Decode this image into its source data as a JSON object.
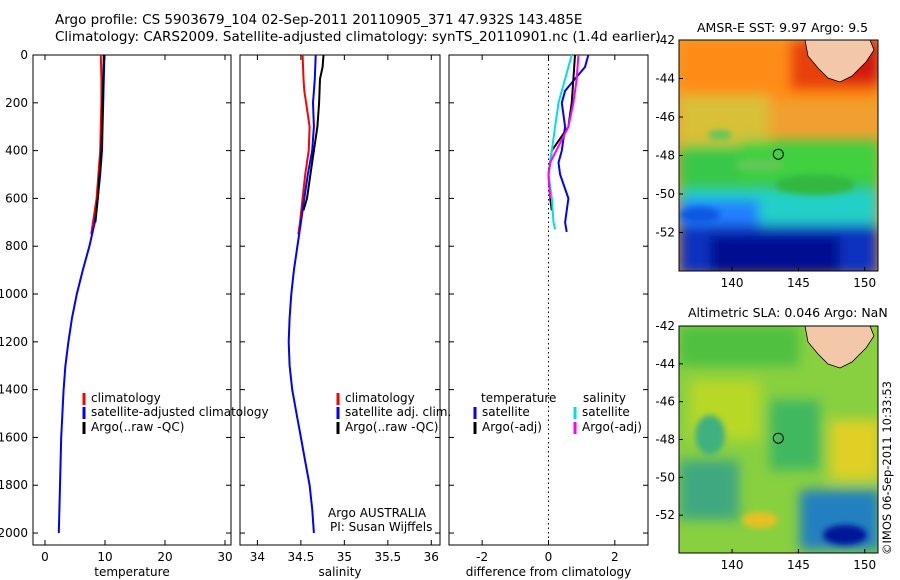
{
  "header": {
    "line1": "Argo profile: CS 5903679_104 02-Sep-2011 20110905_371 47.932S 143.485E",
    "line2": "Climatology: CARS2009. Satellite-adjusted climatology: synTS_20110901.nc (1.4d earlier)"
  },
  "stamp": "©IMOS 06-Sep-2011 10:33:53",
  "colors": {
    "climatology": "#ff0000",
    "satellite": "#0000ff",
    "argo": "#000000",
    "argo_salt": "#ff00ff",
    "satellite_salt": "#00e0e0"
  },
  "chart_data": [
    {
      "type": "line",
      "id": "temperature",
      "xlabel": "temperature",
      "ylabel": "",
      "xlim": [
        -2,
        31
      ],
      "ylim": [
        2050,
        0
      ],
      "xticks": [
        "0",
        "10",
        "20",
        "30"
      ],
      "xtick_values": [
        0,
        10,
        20,
        30
      ],
      "yticks": [
        "0",
        "200",
        "400",
        "600",
        "800",
        "1000",
        "1200",
        "1400",
        "1600",
        "1800",
        "2000"
      ],
      "ytick_values": [
        0,
        200,
        400,
        600,
        800,
        1000,
        1200,
        1400,
        1600,
        1800,
        2000
      ],
      "legend": [
        "climatology",
        "satellite-adjusted climatology",
        "Argo(..raw -QC)"
      ],
      "series": [
        {
          "name": "climatology",
          "color": "#ff0000",
          "points": [
            [
              9.3,
              0
            ],
            [
              9.4,
              100
            ],
            [
              9.4,
              200
            ],
            [
              9.3,
              300
            ],
            [
              9.2,
              400
            ],
            [
              8.9,
              500
            ],
            [
              8.6,
              600
            ],
            [
              8.0,
              700
            ],
            [
              7.7,
              750
            ]
          ]
        },
        {
          "name": "satellite-adjusted climatology",
          "color": "#0000ff",
          "points": [
            [
              9.9,
              0
            ],
            [
              9.8,
              100
            ],
            [
              9.7,
              200
            ],
            [
              9.6,
              300
            ],
            [
              9.5,
              400
            ],
            [
              9.2,
              500
            ],
            [
              8.8,
              600
            ],
            [
              8.3,
              700
            ],
            [
              7.4,
              800
            ],
            [
              6.3,
              900
            ],
            [
              5.3,
              1000
            ],
            [
              4.5,
              1100
            ],
            [
              3.9,
              1200
            ],
            [
              3.4,
              1300
            ],
            [
              3.1,
              1400
            ],
            [
              2.9,
              1500
            ],
            [
              2.7,
              1600
            ],
            [
              2.6,
              1700
            ],
            [
              2.5,
              1800
            ],
            [
              2.4,
              1900
            ],
            [
              2.3,
              2000
            ]
          ]
        },
        {
          "name": "Argo(..raw -QC)",
          "color": "#000000",
          "points": [
            [
              9.8,
              0
            ],
            [
              9.7,
              100
            ],
            [
              9.6,
              200
            ],
            [
              9.5,
              300
            ],
            [
              9.4,
              400
            ],
            [
              9.1,
              500
            ],
            [
              8.8,
              600
            ],
            [
              8.4,
              700
            ]
          ]
        }
      ]
    },
    {
      "type": "line",
      "id": "salinity",
      "xlabel": "salinity",
      "xlim": [
        33.8,
        36.1
      ],
      "ylim": [
        2050,
        0
      ],
      "xticks": [
        "34",
        "34.5",
        "35",
        "35.5",
        "36"
      ],
      "xtick_values": [
        34,
        34.5,
        35,
        35.5,
        36
      ],
      "legend": [
        "climatology",
        "satellite adj. clim.",
        "Argo(..raw -QC)"
      ],
      "annotation": [
        "Argo AUSTRALIA",
        "PI: Susan Wijffels"
      ],
      "series": [
        {
          "name": "climatology",
          "color": "#ff0000",
          "points": [
            [
              34.52,
              0
            ],
            [
              34.53,
              100
            ],
            [
              34.54,
              150
            ],
            [
              34.56,
              200
            ],
            [
              34.6,
              300
            ],
            [
              34.59,
              400
            ],
            [
              34.55,
              500
            ],
            [
              34.52,
              600
            ],
            [
              34.49,
              700
            ],
            [
              34.47,
              750
            ]
          ]
        },
        {
          "name": "satellite adj. clim.",
          "color": "#0000ff",
          "points": [
            [
              34.67,
              0
            ],
            [
              34.66,
              100
            ],
            [
              34.65,
              150
            ],
            [
              34.64,
              200
            ],
            [
              34.65,
              300
            ],
            [
              34.63,
              400
            ],
            [
              34.58,
              500
            ],
            [
              34.54,
              600
            ],
            [
              34.5,
              700
            ],
            [
              34.46,
              800
            ],
            [
              34.42,
              900
            ],
            [
              34.39,
              1000
            ],
            [
              34.37,
              1100
            ],
            [
              34.36,
              1200
            ],
            [
              34.37,
              1300
            ],
            [
              34.4,
              1400
            ],
            [
              34.45,
              1500
            ],
            [
              34.5,
              1600
            ],
            [
              34.55,
              1700
            ],
            [
              34.6,
              1800
            ],
            [
              34.63,
              1900
            ],
            [
              34.65,
              2000
            ]
          ]
        },
        {
          "name": "Argo(..raw -QC)",
          "color": "#000000",
          "points": [
            [
              34.76,
              0
            ],
            [
              34.75,
              50
            ],
            [
              34.72,
              100
            ],
            [
              34.71,
              200
            ],
            [
              34.69,
              300
            ],
            [
              34.65,
              400
            ],
            [
              34.61,
              500
            ],
            [
              34.57,
              600
            ],
            [
              34.53,
              650
            ]
          ]
        }
      ]
    },
    {
      "type": "line",
      "id": "difference",
      "xlabel": "difference from climatology",
      "xlim": [
        -3,
        3
      ],
      "ylim": [
        2050,
        0
      ],
      "xticks": [
        "-2",
        "0",
        "2"
      ],
      "xtick_values": [
        -2,
        0,
        2
      ],
      "legend_headers": [
        "temperature",
        "salinity"
      ],
      "legend": [
        "satellite",
        "Argo(-adj)",
        "satellite",
        "Argo(-adj)"
      ],
      "series": [
        {
          "name": "temperature satellite",
          "color": "#0000ff",
          "points": [
            [
              1.2,
              0
            ],
            [
              1.1,
              50
            ],
            [
              0.8,
              100
            ],
            [
              0.5,
              150
            ],
            [
              0.4,
              200
            ],
            [
              0.5,
              300
            ],
            [
              0.4,
              400
            ],
            [
              0.3,
              450
            ],
            [
              0.35,
              500
            ],
            [
              0.6,
              600
            ],
            [
              0.5,
              700
            ],
            [
              0.55,
              740
            ]
          ]
        },
        {
          "name": "temperature Argo(-adj)",
          "color": "#000000",
          "points": [
            [
              0.8,
              0
            ],
            [
              0.75,
              100
            ],
            [
              0.7,
              200
            ],
            [
              0.6,
              300
            ],
            [
              0.1,
              400
            ],
            [
              0.0,
              500
            ],
            [
              0.05,
              600
            ],
            [
              0.1,
              650
            ]
          ]
        },
        {
          "name": "salinity satellite",
          "color": "#00e0e0",
          "points": [
            [
              0.7,
              0
            ],
            [
              0.6,
              50
            ],
            [
              0.5,
              100
            ],
            [
              0.3,
              200
            ],
            [
              0.2,
              300
            ],
            [
              0.1,
              400
            ],
            [
              0.0,
              500
            ],
            [
              0.1,
              600
            ],
            [
              0.15,
              700
            ],
            [
              0.2,
              730
            ]
          ]
        },
        {
          "name": "salinity Argo(-adj)",
          "color": "#ff00ff",
          "points": [
            [
              0.9,
              0
            ],
            [
              0.85,
              100
            ],
            [
              0.75,
              200
            ],
            [
              0.6,
              300
            ],
            [
              0.05,
              450
            ],
            [
              0.0,
              500
            ],
            [
              0.05,
              600
            ]
          ]
        }
      ]
    },
    {
      "type": "heatmap",
      "id": "sst_map",
      "title": "AMSR-E SST: 9.97 Argo: 9.5",
      "xlim": [
        136,
        151
      ],
      "ylim": [
        -54,
        -42
      ],
      "xticks": [
        "140",
        "145",
        "150"
      ],
      "xtick_values": [
        140,
        145,
        150
      ],
      "yticks": [
        "-42",
        "-44",
        "-46",
        "-48",
        "-50",
        "-52"
      ],
      "ytick_values": [
        -42,
        -44,
        -46,
        -48,
        -50,
        -52
      ],
      "argo_position": [
        143.485,
        -47.932
      ]
    },
    {
      "type": "heatmap",
      "id": "sla_map",
      "title": "Altimetric SLA: 0.046 Argo: NaN",
      "xlim": [
        136,
        151
      ],
      "ylim": [
        -54,
        -42
      ],
      "xticks": [
        "140",
        "145",
        "150"
      ],
      "xtick_values": [
        140,
        145,
        150
      ],
      "yticks": [
        "-42",
        "-44",
        "-46",
        "-48",
        "-50",
        "-52"
      ],
      "ytick_values": [
        -42,
        -44,
        -46,
        -48,
        -50,
        -52
      ],
      "argo_position": [
        143.485,
        -47.932
      ]
    }
  ]
}
